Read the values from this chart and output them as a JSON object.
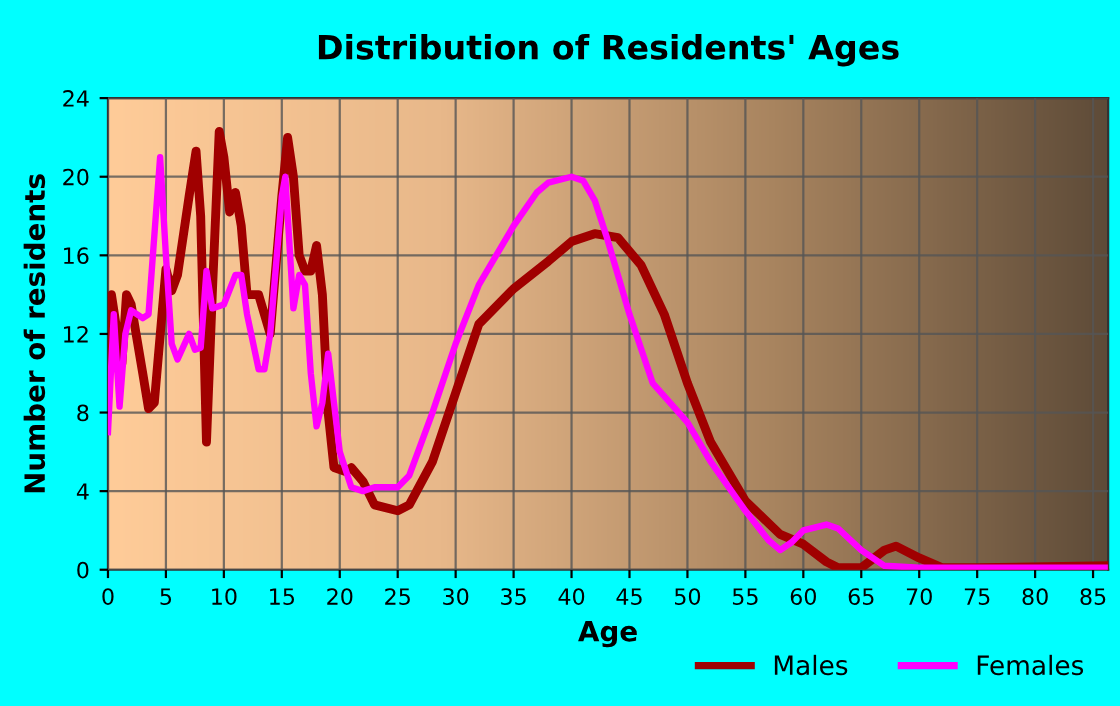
{
  "chart_data": {
    "type": "line",
    "title": "Distribution of Residents' Ages",
    "xlabel": "Age",
    "ylabel": "Number of residents",
    "xlim": [
      0,
      86.3
    ],
    "xticks": [
      0,
      5,
      10,
      15,
      20,
      25,
      30,
      35,
      40,
      45,
      50,
      55,
      60,
      65,
      70,
      75,
      80,
      85
    ],
    "ylim": [
      0,
      24
    ],
    "yticks": [
      0,
      4,
      8,
      12,
      16,
      20,
      24
    ],
    "grid": true,
    "legend": "bottom right",
    "marker": "none",
    "line_style": "solid",
    "series": [
      {
        "name": "Males",
        "color": "#a00000",
        "x": [
          0,
          0.3,
          1.2,
          1.6,
          2,
          3,
          3.5,
          4,
          5,
          5.5,
          6,
          7,
          7.6,
          8,
          8.5,
          9,
          9.6,
          10,
          10.5,
          11,
          11.5,
          12,
          13,
          14,
          15,
          15.5,
          16,
          16.5,
          17,
          17.5,
          18,
          18.5,
          19,
          19.5,
          20.5,
          21,
          22,
          23,
          25,
          26,
          28,
          30,
          32,
          35,
          38,
          40,
          42,
          44,
          46,
          48,
          50,
          52,
          55,
          58,
          60,
          62,
          63,
          65,
          67,
          68,
          70,
          72,
          75,
          86
        ],
        "values": [
          9,
          14,
          10.5,
          14,
          13.5,
          10,
          8.2,
          8.5,
          15.3,
          14.2,
          15,
          19,
          21.3,
          18,
          6.5,
          14,
          22.3,
          21,
          18.2,
          19.2,
          17.5,
          14,
          14,
          12,
          19,
          22,
          20,
          16,
          15.2,
          15.2,
          16.5,
          14,
          8,
          5.2,
          5,
          5.2,
          4.5,
          3.3,
          3,
          3.3,
          5.5,
          9,
          12.5,
          14.3,
          15.7,
          16.7,
          17.1,
          16.9,
          15.5,
          13,
          9.5,
          6.5,
          3.5,
          1.8,
          1.3,
          0.4,
          0.1,
          0.1,
          1.0,
          1.2,
          0.6,
          0.1,
          0.1,
          0.2
        ]
      },
      {
        "name": "Females",
        "color": "#ff00ff",
        "x": [
          0,
          0.5,
          1,
          1.5,
          2,
          3,
          3.5,
          4,
          4.5,
          5,
          5.5,
          6,
          7,
          7.5,
          8,
          8.5,
          9,
          10,
          11,
          11.5,
          12,
          13,
          13.5,
          14,
          15,
          15.3,
          16,
          16.5,
          17,
          17.5,
          18,
          18.5,
          19,
          19.5,
          20,
          21,
          22,
          23,
          25,
          26,
          28,
          30,
          32,
          35,
          37,
          38,
          40,
          41,
          42,
          43,
          45,
          47,
          50,
          52,
          55,
          57,
          58,
          59,
          60,
          62,
          63,
          65,
          67,
          70,
          75,
          86
        ],
        "values": [
          7,
          13,
          8.3,
          12,
          13.2,
          12.8,
          13,
          17,
          21,
          16,
          11.5,
          10.7,
          12,
          11.2,
          11.3,
          15.2,
          13.3,
          13.5,
          15,
          15,
          13,
          10.2,
          10.2,
          12,
          19,
          20,
          13.3,
          15,
          14.5,
          10,
          7.3,
          8.5,
          11,
          8.5,
          6,
          4.2,
          4,
          4.2,
          4.2,
          4.8,
          8,
          11.5,
          14.5,
          17.5,
          19.2,
          19.7,
          20,
          19.8,
          18.8,
          17,
          13,
          9.5,
          7.5,
          5.5,
          3,
          1.5,
          1.0,
          1.4,
          2,
          2.3,
          2.1,
          1.0,
          0.2,
          0.1,
          0.1,
          0.1
        ]
      }
    ]
  }
}
